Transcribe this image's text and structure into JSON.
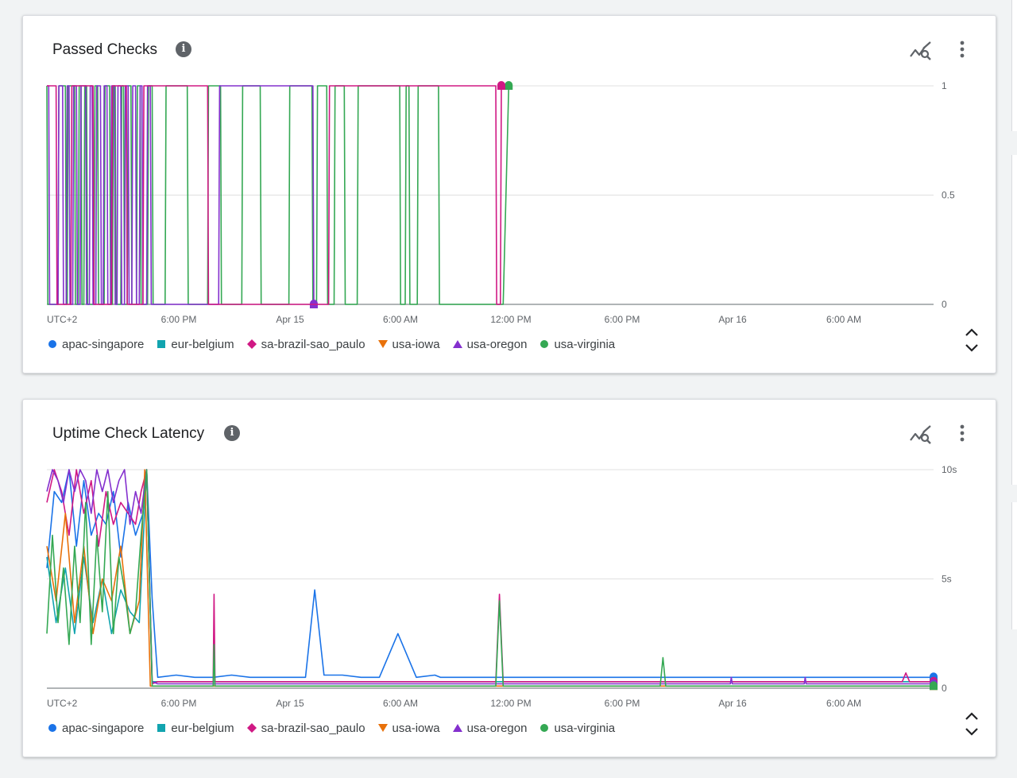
{
  "colors": {
    "apac-singapore": "#1a73e8",
    "eur-belgium": "#12a4af",
    "sa-brazil-sao_paulo": "#d01884",
    "usa-iowa": "#e8710a",
    "usa-oregon": "#8430ce",
    "usa-virginia": "#34a853"
  },
  "icons": [
    "info-icon",
    "explore-icon",
    "more-vert-icon",
    "unfold-icon"
  ],
  "cards": [
    {
      "title": "Passed Checks",
      "legend": [
        {
          "label": "apac-singapore",
          "shape": "circle",
          "color": "#1a73e8"
        },
        {
          "label": "eur-belgium",
          "shape": "square",
          "color": "#12a4af"
        },
        {
          "label": "sa-brazil-sao_paulo",
          "shape": "diamond",
          "color": "#d01884"
        },
        {
          "label": "usa-iowa",
          "shape": "triangle-down",
          "color": "#e8710a"
        },
        {
          "label": "usa-oregon",
          "shape": "triangle-up",
          "color": "#8430ce"
        },
        {
          "label": "usa-virginia",
          "shape": "circle",
          "color": "#34a853"
        }
      ],
      "chart_data": {
        "type": "line",
        "x_tick_labels": [
          "UTC+2",
          "6:00 PM",
          "Apr 15",
          "6:00 AM",
          "12:00 PM",
          "6:00 PM",
          "Apr 16",
          "6:00 AM"
        ],
        "y_tick_labels": [
          "0",
          "0.5",
          "1"
        ],
        "ylim": [
          0,
          1
        ],
        "grid": true,
        "legend_position": "bottom",
        "x_unit": "hours since 12:00 PM Apr 14 (UTC+2)",
        "xlim": [
          0,
          48
        ],
        "series": [
          {
            "name": "usa-virginia",
            "color": "#34a853",
            "x": [
              0.0,
              0.05,
              0.1,
              0.6,
              0.65,
              1.0,
              1.05,
              1.1,
              1.15,
              1.5,
              1.55,
              1.7,
              1.75,
              1.85,
              1.9,
              2.0,
              2.05,
              2.15,
              2.2,
              2.55,
              2.6,
              2.75,
              2.8,
              3.1,
              3.15,
              3.4,
              3.45,
              3.55,
              3.6,
              3.7,
              3.75,
              4.0,
              4.05,
              4.15,
              4.2,
              4.35,
              4.4,
              4.55,
              4.6,
              4.85,
              4.9,
              5.05,
              5.1,
              5.45,
              5.5,
              5.7,
              5.75,
              6.4,
              6.45,
              7.6,
              7.65,
              8.7,
              8.75,
              9.4,
              9.45,
              10.55,
              10.6,
              11.55,
              11.6,
              13.1,
              13.15,
              14.35,
              14.4,
              14.6,
              14.65,
              15.15,
              15.2,
              15.55,
              15.6,
              16.1,
              16.15,
              16.8,
              16.85,
              19.1,
              19.15,
              19.4,
              19.45,
              19.6,
              19.65,
              20.05,
              20.1,
              21.2,
              21.25,
              24.7,
              25.0
            ],
            "y": [
              1,
              0,
              0,
              0,
              1,
              1,
              0,
              0,
              1,
              1,
              0,
              0,
              1,
              1,
              0,
              0,
              1,
              1,
              0,
              0,
              1,
              1,
              0,
              0,
              1,
              1,
              0,
              0,
              1,
              1,
              0,
              0,
              1,
              1,
              0,
              0,
              1,
              1,
              0,
              0,
              1,
              1,
              0,
              0,
              1,
              1,
              0,
              0,
              1,
              1,
              0,
              0,
              1,
              1,
              0,
              0,
              1,
              1,
              0,
              0,
              1,
              1,
              0,
              0,
              1,
              1,
              0,
              0,
              1,
              1,
              0,
              0,
              1,
              1,
              0,
              0,
              1,
              1,
              0,
              0,
              1,
              1,
              0,
              0,
              1
            ]
          },
          {
            "name": "usa-oregon",
            "color": "#8430ce",
            "x": [
              0.0,
              0.1,
              0.15,
              0.6,
              0.65,
              0.85,
              0.9,
              1.05,
              1.1,
              1.2,
              1.25,
              1.4,
              1.45,
              1.6,
              1.65,
              1.8,
              1.85,
              2.1,
              2.15,
              2.3,
              2.35,
              2.45,
              2.5,
              2.65,
              2.7,
              2.9,
              2.95,
              3.05,
              3.1,
              3.25,
              3.3,
              3.45,
              3.5,
              3.65,
              3.7,
              3.8,
              3.85,
              4.0,
              4.05,
              4.2,
              4.25,
              4.4,
              4.45,
              4.6,
              4.65,
              4.8,
              4.85,
              5.0,
              5.05,
              5.15,
              5.2,
              5.4,
              5.45,
              5.6,
              5.65,
              9.3,
              9.35,
              14.4,
              14.45
            ],
            "y": [
              1,
              1,
              0,
              0,
              1,
              1,
              0,
              0,
              1,
              1,
              0,
              0,
              1,
              1,
              0,
              0,
              1,
              1,
              0,
              0,
              1,
              1,
              0,
              0,
              1,
              1,
              0,
              0,
              1,
              1,
              0,
              0,
              1,
              1,
              0,
              0,
              1,
              1,
              0,
              0,
              1,
              1,
              0,
              0,
              1,
              1,
              0,
              0,
              1,
              1,
              0,
              0,
              1,
              1,
              0,
              0,
              1,
              1,
              0
            ]
          },
          {
            "name": "sa-brazil-sao_paulo",
            "color": "#d01884",
            "x": [
              0.0,
              0.5,
              0.55,
              1.3,
              1.35,
              2.5,
              2.55,
              3.5,
              3.55,
              4.3,
              4.35,
              5.2,
              5.25,
              8.7,
              8.75,
              15.25,
              15.3,
              24.3,
              24.35,
              24.55,
              24.6
            ],
            "y": [
              1,
              1,
              0,
              0,
              1,
              1,
              0,
              0,
              1,
              1,
              0,
              0,
              1,
              1,
              0,
              0,
              1,
              1,
              0,
              0,
              1
            ]
          }
        ]
      }
    },
    {
      "title": "Uptime Check Latency",
      "legend": [
        {
          "label": "apac-singapore",
          "shape": "circle",
          "color": "#1a73e8"
        },
        {
          "label": "eur-belgium",
          "shape": "square",
          "color": "#12a4af"
        },
        {
          "label": "sa-brazil-sao_paulo",
          "shape": "diamond",
          "color": "#d01884"
        },
        {
          "label": "usa-iowa",
          "shape": "triangle-down",
          "color": "#e8710a"
        },
        {
          "label": "usa-oregon",
          "shape": "triangle-up",
          "color": "#8430ce"
        },
        {
          "label": "usa-virginia",
          "shape": "circle",
          "color": "#34a853"
        }
      ],
      "chart_data": {
        "type": "line",
        "x_tick_labels": [
          "UTC+2",
          "6:00 PM",
          "Apr 15",
          "6:00 AM",
          "12:00 PM",
          "6:00 PM",
          "Apr 16",
          "6:00 AM"
        ],
        "y_tick_labels": [
          "0",
          "5s",
          "10s"
        ],
        "ylim": [
          0,
          10
        ],
        "y_unit": "s",
        "grid": true,
        "legend_position": "bottom",
        "x_unit": "hours since 12:00 PM Apr 14 (UTC+2)",
        "xlim": [
          0,
          48
        ],
        "series": [
          {
            "name": "apac-singapore",
            "color": "#1a73e8",
            "x": [
              0.0,
              0.4,
              0.8,
              1.2,
              1.6,
              2.0,
              2.4,
              2.8,
              3.2,
              3.6,
              4.0,
              4.4,
              4.8,
              5.2,
              5.4,
              5.7,
              6.0,
              7.0,
              8.0,
              9.0,
              10.0,
              11.0,
              12.0,
              13.0,
              14.0,
              14.5,
              15.0,
              16.0,
              17.0,
              18.0,
              19.0,
              20.0,
              21.0,
              21.3,
              21.6,
              22.0,
              25.0,
              28.0,
              31.0,
              34.0,
              37.0,
              40.0,
              43.0,
              46.0,
              48.0
            ],
            "y": [
              5.5,
              9.0,
              8.5,
              10.0,
              6.5,
              9.5,
              7.0,
              8.0,
              7.5,
              9.0,
              6.0,
              8.5,
              7.0,
              8.0,
              10.0,
              4.1,
              0.5,
              0.6,
              0.5,
              0.5,
              0.6,
              0.5,
              0.5,
              0.5,
              0.5,
              4.5,
              0.6,
              0.6,
              0.5,
              0.5,
              2.5,
              0.5,
              0.6,
              0.5,
              0.5,
              0.5,
              0.5,
              0.5,
              0.5,
              0.5,
              0.5,
              0.5,
              0.5,
              0.5,
              0.5
            ]
          },
          {
            "name": "eur-belgium",
            "color": "#12a4af",
            "x": [
              0.0,
              0.5,
              1.0,
              1.5,
              2.0,
              2.5,
              3.0,
              3.5,
              4.0,
              4.5,
              5.0,
              5.4,
              5.7,
              6.0,
              10.0,
              15.0,
              20.0,
              25.0,
              30.0,
              35.0,
              40.0,
              48.0
            ],
            "y": [
              6.0,
              3.0,
              5.5,
              2.5,
              6.0,
              3.0,
              5.0,
              2.5,
              4.5,
              3.5,
              3.0,
              10.0,
              0.3,
              0.3,
              0.3,
              0.3,
              0.3,
              0.3,
              0.3,
              0.3,
              0.3,
              0.3
            ]
          },
          {
            "name": "sa-brazil-sao_paulo",
            "color": "#d01884",
            "x": [
              0.0,
              0.4,
              0.8,
              1.2,
              1.6,
              2.0,
              2.4,
              2.8,
              3.2,
              3.6,
              4.0,
              4.4,
              4.8,
              5.1,
              5.4,
              5.7,
              6.0,
              9.0,
              9.05,
              9.1,
              12.0,
              16.0,
              20.0,
              24.0,
              24.3,
              24.5,
              24.7,
              28.0,
              32.0,
              36.0,
              40.0,
              44.0,
              46.3,
              46.5,
              46.7,
              48.0
            ],
            "y": [
              8.5,
              10.0,
              9.0,
              7.0,
              10.0,
              8.0,
              9.5,
              6.5,
              9.0,
              7.5,
              8.5,
              8.0,
              7.5,
              9.0,
              10.0,
              0.2,
              0.3,
              0.3,
              4.3,
              0.3,
              0.3,
              0.3,
              0.3,
              0.3,
              0.3,
              4.3,
              0.3,
              0.3,
              0.3,
              0.3,
              0.3,
              0.3,
              0.3,
              0.7,
              0.3,
              0.3
            ]
          },
          {
            "name": "usa-iowa",
            "color": "#e8710a",
            "x": [
              0.0,
              0.5,
              1.0,
              1.5,
              2.0,
              2.5,
              3.0,
              3.5,
              4.0,
              4.5,
              5.0,
              5.3,
              5.6,
              6.0,
              12.0,
              18.0,
              24.0,
              30.0,
              36.0,
              42.0,
              48.0
            ],
            "y": [
              6.5,
              4.0,
              8.0,
              3.0,
              6.5,
              2.5,
              5.0,
              4.0,
              6.5,
              2.5,
              4.0,
              10.0,
              0.1,
              0.1,
              0.1,
              0.1,
              0.1,
              0.1,
              0.1,
              0.1,
              0.1
            ]
          },
          {
            "name": "usa-oregon",
            "color": "#8430ce",
            "x": [
              0.0,
              0.3,
              0.6,
              0.9,
              1.2,
              1.5,
              1.8,
              2.1,
              2.4,
              2.7,
              3.0,
              3.3,
              3.6,
              3.9,
              4.2,
              4.5,
              4.8,
              5.1,
              5.4,
              5.7,
              6.0,
              12.0,
              18.0,
              24.0,
              30.0,
              36.0,
              37.0,
              37.05,
              37.1,
              40.0,
              41.0,
              41.05,
              41.1,
              48.0
            ],
            "y": [
              9.0,
              10.0,
              9.5,
              8.5,
              10.0,
              9.0,
              10.0,
              9.5,
              8.0,
              10.0,
              9.0,
              10.0,
              8.5,
              9.5,
              10.0,
              7.5,
              9.0,
              8.0,
              10.0,
              0.3,
              0.2,
              0.2,
              0.2,
              0.2,
              0.2,
              0.2,
              0.2,
              0.5,
              0.2,
              0.2,
              0.2,
              0.5,
              0.2,
              0.2
            ]
          },
          {
            "name": "usa-virginia",
            "color": "#34a853",
            "x": [
              0.0,
              0.3,
              0.6,
              0.9,
              1.2,
              1.5,
              1.8,
              2.1,
              2.4,
              2.7,
              3.0,
              3.3,
              3.6,
              3.9,
              4.2,
              4.5,
              4.8,
              5.1,
              5.4,
              5.7,
              6.0,
              9.0,
              9.05,
              9.1,
              12.0,
              18.0,
              24.0,
              24.3,
              24.5,
              24.7,
              30.0,
              33.2,
              33.35,
              33.5,
              40.0,
              48.0
            ],
            "y": [
              2.5,
              7.0,
              3.0,
              5.5,
              2.0,
              6.5,
              3.0,
              8.5,
              2.0,
              7.0,
              3.5,
              9.0,
              2.5,
              6.0,
              4.5,
              2.5,
              3.5,
              7.0,
              10.0,
              0.1,
              0.1,
              0.1,
              2.0,
              0.1,
              0.1,
              0.1,
              0.1,
              0.1,
              4.0,
              0.1,
              0.1,
              0.1,
              1.4,
              0.1,
              0.1,
              0.1
            ]
          }
        ]
      }
    }
  ]
}
